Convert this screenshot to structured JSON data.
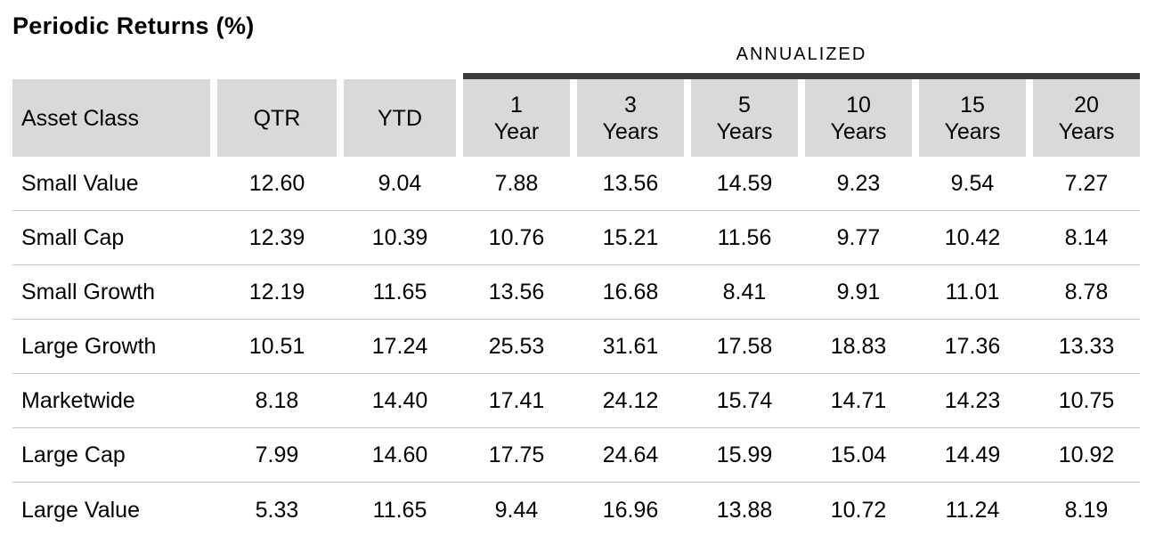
{
  "title": "Periodic Returns (%)",
  "table": {
    "header": {
      "annualized_label": "ANNUALIZED",
      "asset_class": "Asset Class",
      "qtr": "QTR",
      "ytd": "YTD",
      "annualized": [
        {
          "num": "1",
          "unit": "Year"
        },
        {
          "num": "3",
          "unit": "Years"
        },
        {
          "num": "5",
          "unit": "Years"
        },
        {
          "num": "10",
          "unit": "Years"
        },
        {
          "num": "15",
          "unit": "Years"
        },
        {
          "num": "20",
          "unit": "Years"
        }
      ]
    },
    "rows": [
      {
        "name": "Small Value",
        "qtr": "12.60",
        "ytd": "9.04",
        "y1": "7.88",
        "y3": "13.56",
        "y5": "14.59",
        "y10": "9.23",
        "y15": "9.54",
        "y20": "7.27"
      },
      {
        "name": "Small Cap",
        "qtr": "12.39",
        "ytd": "10.39",
        "y1": "10.76",
        "y3": "15.21",
        "y5": "11.56",
        "y10": "9.77",
        "y15": "10.42",
        "y20": "8.14"
      },
      {
        "name": "Small Growth",
        "qtr": "12.19",
        "ytd": "11.65",
        "y1": "13.56",
        "y3": "16.68",
        "y5": "8.41",
        "y10": "9.91",
        "y15": "11.01",
        "y20": "8.78"
      },
      {
        "name": "Large Growth",
        "qtr": "10.51",
        "ytd": "17.24",
        "y1": "25.53",
        "y3": "31.61",
        "y5": "17.58",
        "y10": "18.83",
        "y15": "17.36",
        "y20": "13.33"
      },
      {
        "name": "Marketwide",
        "qtr": "8.18",
        "ytd": "14.40",
        "y1": "17.41",
        "y3": "24.12",
        "y5": "15.74",
        "y10": "14.71",
        "y15": "14.23",
        "y20": "10.75"
      },
      {
        "name": "Large Cap",
        "qtr": "7.99",
        "ytd": "14.60",
        "y1": "17.75",
        "y3": "24.64",
        "y5": "15.99",
        "y10": "15.04",
        "y15": "14.49",
        "y20": "10.92"
      },
      {
        "name": "Large Value",
        "qtr": "5.33",
        "ytd": "11.65",
        "y1": "9.44",
        "y3": "16.96",
        "y5": "13.88",
        "y10": "10.72",
        "y15": "11.24",
        "y20": "8.19"
      }
    ]
  },
  "colors": {
    "header_bg": "#d9d9d9",
    "annualized_bar": "#3b3b3b",
    "row_divider": "#c3c3c3",
    "text": "#000000"
  },
  "chart_data": {
    "type": "table",
    "title": "Periodic Returns (%)",
    "units": "percent",
    "group_header": {
      "label": "ANNUALIZED",
      "spans_columns": [
        "1 Year",
        "3 Years",
        "5 Years",
        "10 Years",
        "15 Years",
        "20 Years"
      ]
    },
    "columns": [
      "Asset Class",
      "QTR",
      "YTD",
      "1 Year",
      "3 Years",
      "5 Years",
      "10 Years",
      "15 Years",
      "20 Years"
    ],
    "rows": [
      [
        "Small Value",
        12.6,
        9.04,
        7.88,
        13.56,
        14.59,
        9.23,
        9.54,
        7.27
      ],
      [
        "Small Cap",
        12.39,
        10.39,
        10.76,
        15.21,
        11.56,
        9.77,
        10.42,
        8.14
      ],
      [
        "Small Growth",
        12.19,
        11.65,
        13.56,
        16.68,
        8.41,
        9.91,
        11.01,
        8.78
      ],
      [
        "Large Growth",
        10.51,
        17.24,
        25.53,
        31.61,
        17.58,
        18.83,
        17.36,
        13.33
      ],
      [
        "Marketwide",
        8.18,
        14.4,
        17.41,
        24.12,
        15.74,
        14.71,
        14.23,
        10.75
      ],
      [
        "Large Cap",
        7.99,
        14.6,
        17.75,
        24.64,
        15.99,
        15.04,
        14.49,
        10.92
      ],
      [
        "Large Value",
        5.33,
        11.65,
        9.44,
        16.96,
        13.88,
        10.72,
        11.24,
        8.19
      ]
    ]
  }
}
